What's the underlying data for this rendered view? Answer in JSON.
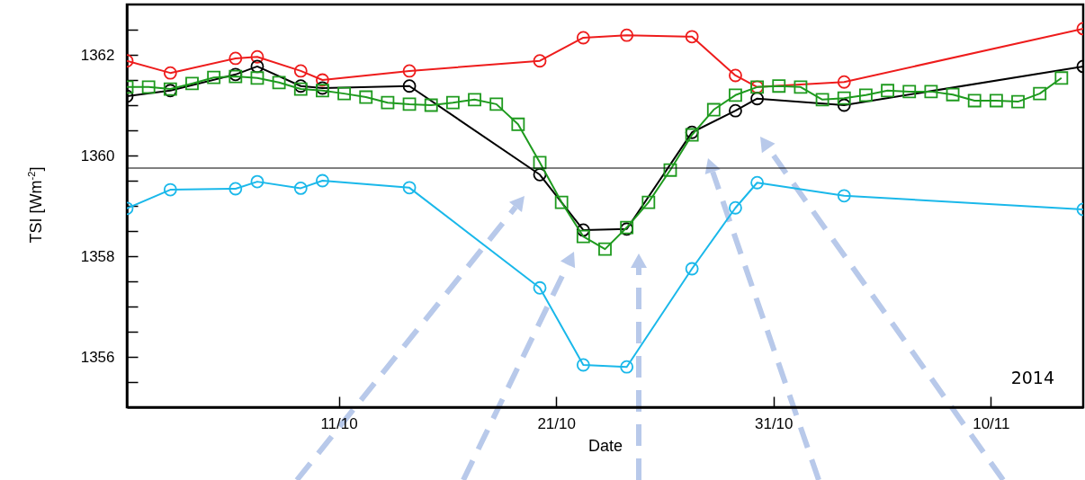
{
  "chart_data": {
    "type": "line",
    "xlabel": "Date",
    "ylabel": "TSI [Wm$^{-2}$]",
    "xlim": [
      "2014-10-01T06:00",
      "2014-11-14T06:00"
    ],
    "xticks": [
      {
        "value": "2014-10-11",
        "label": "11/10"
      },
      {
        "value": "2014-10-21",
        "label": "21/10"
      },
      {
        "value": "2014-10-31",
        "label": "31/10"
      },
      {
        "value": "2014-11-10",
        "label": "10/11"
      }
    ],
    "ylim": [
      1355,
      1363
    ],
    "yticks": [
      {
        "value": 1355.5,
        "label": null
      },
      1356,
      {
        "value": 1356.5,
        "label": null
      },
      {
        "value": 1357,
        "label": null
      },
      {
        "value": 1357.5,
        "label": null
      },
      1358,
      {
        "value": 1358.5,
        "label": null
      },
      {
        "value": 1359,
        "label": null
      },
      {
        "value": 1359.5,
        "label": null
      },
      1360,
      {
        "value": 1360.5,
        "label": null
      },
      {
        "value": 1361,
        "label": null
      },
      {
        "value": 1361.5,
        "label": null
      },
      1362,
      {
        "value": 1362.5,
        "label": null
      }
    ],
    "grid": false,
    "line_style": "solid",
    "ref_lines": [
      {
        "axis": "y",
        "value": 1359.75,
        "color": "#000000"
      }
    ],
    "annotations": [
      "2014"
    ],
    "series": [
      {
        "color": "#ee1c1c",
        "marker": "circle",
        "x": [
          "2014-10-01T06:00",
          "2014-10-03T06:00",
          "2014-10-06T06:00",
          "2014-10-07T06:00",
          "2014-10-09T06:00",
          "2014-10-10T06:00",
          "2014-10-14T06:00",
          "2014-10-20T06:00",
          "2014-10-22T06:00",
          "2014-10-24T06:00",
          "2014-10-27T06:00",
          "2014-10-29T06:00",
          "2014-10-30T06:00",
          "2014-11-03T06:00",
          "2014-11-14T06:00"
        ],
        "values": [
          1361.88,
          1361.64,
          1361.93,
          1361.96,
          1361.68,
          1361.5,
          1361.68,
          1361.88,
          1362.34,
          1362.39,
          1362.36,
          1361.59,
          1361.36,
          1361.46,
          1362.52
        ]
      },
      {
        "color": "#000000",
        "marker": "circle",
        "x": [
          "2014-10-01T06:00",
          "2014-10-03T06:00",
          "2014-10-06T06:00",
          "2014-10-07T06:00",
          "2014-10-09T06:00",
          "2014-10-10T06:00",
          "2014-10-14T06:00",
          "2014-10-20T06:00",
          "2014-10-22T06:00",
          "2014-10-24T06:00",
          "2014-10-27T06:00",
          "2014-10-29T06:00",
          "2014-10-30T06:00",
          "2014-11-03T06:00",
          "2014-11-14T06:00"
        ],
        "values": [
          1361.18,
          1361.29,
          1361.61,
          1361.77,
          1361.38,
          1361.34,
          1361.38,
          1359.62,
          1358.52,
          1358.54,
          1360.46,
          1360.89,
          1361.13,
          1361.0,
          1361.77
        ]
      },
      {
        "color": "#1ab8ea",
        "marker": "circle",
        "x": [
          "2014-10-01T06:00",
          "2014-10-03T06:00",
          "2014-10-06T06:00",
          "2014-10-07T06:00",
          "2014-10-09T06:00",
          "2014-10-10T06:00",
          "2014-10-14T06:00",
          "2014-10-20T06:00",
          "2014-10-22T06:00",
          "2014-10-24T06:00",
          "2014-10-27T06:00",
          "2014-10-29T06:00",
          "2014-10-30T06:00",
          "2014-11-03T06:00",
          "2014-11-14T06:00"
        ],
        "values": [
          1358.95,
          1359.32,
          1359.34,
          1359.48,
          1359.35,
          1359.5,
          1359.36,
          1357.37,
          1355.84,
          1355.8,
          1357.75,
          1358.96,
          1359.46,
          1359.2,
          1358.93
        ]
      },
      {
        "color": "#1e9a1e",
        "marker": "square",
        "x": [
          "2014-10-01T06:00",
          "2014-10-02T06:00",
          "2014-10-03T06:00",
          "2014-10-04T06:00",
          "2014-10-05T06:00",
          "2014-10-06T06:00",
          "2014-10-07T06:00",
          "2014-10-08T06:00",
          "2014-10-09T06:00",
          "2014-10-10T06:00",
          "2014-10-11T06:00",
          "2014-10-12T06:00",
          "2014-10-13T06:00",
          "2014-10-14T06:00",
          "2014-10-15T06:00",
          "2014-10-16T06:00",
          "2014-10-17T06:00",
          "2014-10-18T06:00",
          "2014-10-19T06:00",
          "2014-10-20T06:00",
          "2014-10-21T06:00",
          "2014-10-22T06:00",
          "2014-10-23T06:00",
          "2014-10-24T06:00",
          "2014-10-25T06:00",
          "2014-10-26T06:00",
          "2014-10-27T06:00",
          "2014-10-28T06:00",
          "2014-10-29T06:00",
          "2014-10-30T06:00",
          "2014-10-31T06:00",
          "2014-11-01T06:00",
          "2014-11-02T06:00",
          "2014-11-03T06:00",
          "2014-11-04T06:00",
          "2014-11-05T06:00",
          "2014-11-06T06:00",
          "2014-11-07T06:00",
          "2014-11-08T06:00",
          "2014-11-09T06:00",
          "2014-11-10T06:00",
          "2014-11-11T06:00",
          "2014-11-12T06:00",
          "2014-11-13T06:00"
        ],
        "values": [
          1361.36,
          1361.36,
          1361.32,
          1361.43,
          1361.55,
          1361.57,
          1361.54,
          1361.45,
          1361.32,
          1361.29,
          1361.23,
          1361.16,
          1361.05,
          1361.02,
          1361.0,
          1361.05,
          1361.11,
          1361.02,
          1360.62,
          1359.86,
          1359.07,
          1358.39,
          1358.14,
          1358.57,
          1359.07,
          1359.71,
          1360.41,
          1360.91,
          1361.2,
          1361.36,
          1361.38,
          1361.36,
          1361.11,
          1361.14,
          1361.2,
          1361.29,
          1361.27,
          1361.27,
          1361.21,
          1361.09,
          1361.09,
          1361.07,
          1361.23,
          1361.54
        ]
      }
    ]
  }
}
